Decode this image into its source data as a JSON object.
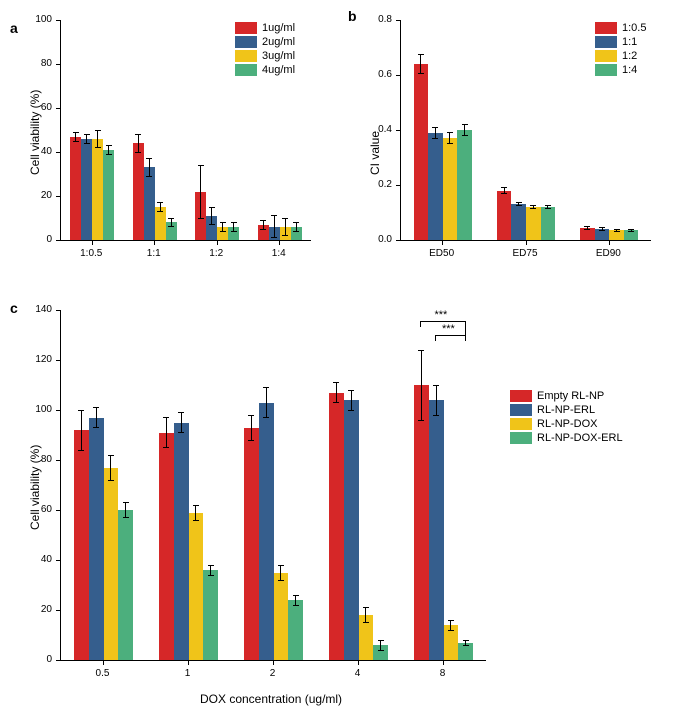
{
  "colors": {
    "red": "#d62728",
    "blue": "#355e8d",
    "yellow": "#f0c419",
    "green": "#4caf7d",
    "axis": "#000000",
    "bg": "#ffffff"
  },
  "panel_a": {
    "label": "a",
    "ylabel": "Cell viability (%)",
    "ylim": [
      0,
      100
    ],
    "ytick_step": 20,
    "categories": [
      "1:0.5",
      "1:1",
      "1:2",
      "1:4"
    ],
    "series_labels": [
      "1ug/ml",
      "2ug/ml",
      "3ug/ml",
      "4ug/ml"
    ],
    "series_colors": [
      "red",
      "blue",
      "yellow",
      "green"
    ],
    "data": [
      [
        47,
        46,
        46,
        41
      ],
      [
        44,
        33,
        15,
        8
      ],
      [
        22,
        11,
        6,
        6
      ],
      [
        7,
        6,
        6,
        6
      ]
    ],
    "errors": [
      [
        2,
        2,
        4,
        2
      ],
      [
        4,
        4,
        2,
        2
      ],
      [
        12,
        4,
        2,
        2
      ],
      [
        2,
        5,
        4,
        2
      ]
    ]
  },
  "panel_b": {
    "label": "b",
    "ylabel": "CI value",
    "ylim": [
      0,
      0.8
    ],
    "ytick_step": 0.2,
    "categories": [
      "ED50",
      "ED75",
      "ED90"
    ],
    "series_labels": [
      "1:0.5",
      "1:1",
      "1:2",
      "1:4"
    ],
    "series_colors": [
      "red",
      "blue",
      "yellow",
      "green"
    ],
    "data": [
      [
        0.64,
        0.39,
        0.37,
        0.4
      ],
      [
        0.18,
        0.13,
        0.12,
        0.12
      ],
      [
        0.045,
        0.04,
        0.035,
        0.035
      ]
    ],
    "errors": [
      [
        0.035,
        0.02,
        0.02,
        0.02
      ],
      [
        0.01,
        0.005,
        0.005,
        0.005
      ],
      [
        0.005,
        0.005,
        0.005,
        0.005
      ]
    ]
  },
  "panel_c": {
    "label": "c",
    "ylabel": "Cell viability (%)",
    "xlabel": "DOX concentration (ug/ml)",
    "ylim": [
      0,
      140
    ],
    "ytick_step": 20,
    "categories": [
      "0.5",
      "1",
      "2",
      "4",
      "8"
    ],
    "series_labels": [
      "Empty RL-NP",
      "RL-NP-ERL",
      "RL-NP-DOX",
      "RL-NP-DOX-ERL"
    ],
    "series_colors": [
      "red",
      "blue",
      "yellow",
      "green"
    ],
    "data": [
      [
        92,
        97,
        77,
        60
      ],
      [
        91,
        95,
        59,
        36
      ],
      [
        93,
        103,
        35,
        24
      ],
      [
        107,
        104,
        18,
        6
      ],
      [
        110,
        104,
        14,
        7
      ]
    ],
    "errors": [
      [
        8,
        4,
        5,
        3
      ],
      [
        6,
        4,
        3,
        2
      ],
      [
        5,
        6,
        3,
        2
      ],
      [
        4,
        4,
        3,
        2
      ],
      [
        14,
        6,
        2,
        1
      ]
    ],
    "significance": "***"
  },
  "fontsize": {
    "panel_label": 14,
    "axis_label": 12,
    "tick": 10,
    "legend": 11
  }
}
